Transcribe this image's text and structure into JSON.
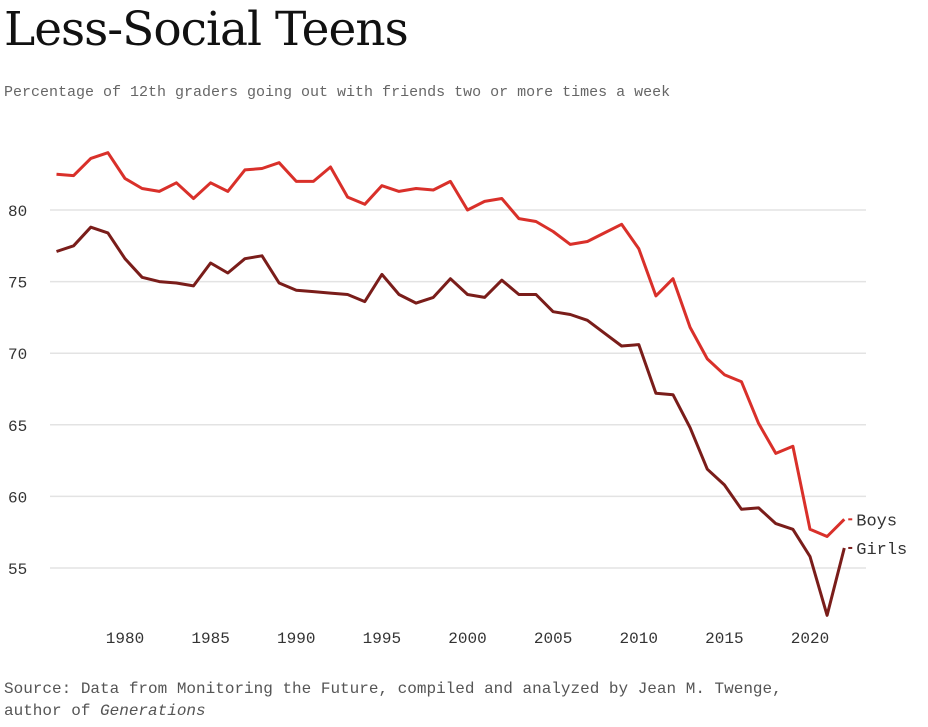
{
  "chart_data": {
    "type": "line",
    "title": "Less-Social Teens",
    "subtitle": "Percentage of 12th graders going out with friends two or more times a week",
    "xlabel": "",
    "ylabel": "",
    "xlim": [
      1976,
      2022
    ],
    "ylim": [
      51,
      85
    ],
    "grid": true,
    "x_ticks": [
      1980,
      1985,
      1990,
      1995,
      2000,
      2005,
      2010,
      2015,
      2020
    ],
    "y_ticks": [
      55,
      60,
      65,
      70,
      75,
      80
    ],
    "x": [
      1976,
      1977,
      1978,
      1979,
      1980,
      1981,
      1982,
      1983,
      1984,
      1985,
      1986,
      1987,
      1988,
      1989,
      1990,
      1991,
      1992,
      1993,
      1994,
      1995,
      1996,
      1997,
      1998,
      1999,
      2000,
      2001,
      2002,
      2003,
      2004,
      2005,
      2006,
      2007,
      2008,
      2009,
      2010,
      2011,
      2012,
      2013,
      2014,
      2015,
      2016,
      2017,
      2018,
      2019,
      2020,
      2021,
      2022
    ],
    "series": [
      {
        "name": "Boys",
        "color": "#d9302a",
        "values": [
          82.5,
          82.4,
          83.6,
          84.0,
          82.2,
          81.5,
          81.3,
          81.9,
          80.8,
          81.9,
          81.3,
          82.8,
          82.9,
          83.3,
          82.0,
          82.0,
          83.0,
          80.9,
          80.4,
          81.7,
          81.3,
          81.5,
          81.4,
          82.0,
          80.0,
          80.6,
          80.8,
          79.4,
          79.2,
          78.5,
          77.6,
          77.8,
          78.4,
          79.0,
          77.3,
          74.0,
          75.2,
          71.8,
          69.6,
          68.5,
          68.0,
          65.1,
          63.0,
          63.5,
          57.7,
          57.2,
          58.4
        ]
      },
      {
        "name": "Girls",
        "color": "#7a1d1a",
        "values": [
          77.1,
          77.5,
          78.8,
          78.4,
          76.6,
          75.3,
          75.0,
          74.9,
          74.7,
          76.3,
          75.6,
          76.6,
          76.8,
          74.9,
          74.4,
          74.3,
          74.2,
          74.1,
          73.6,
          75.5,
          74.1,
          73.5,
          73.9,
          75.2,
          74.1,
          73.9,
          75.1,
          74.1,
          74.1,
          72.9,
          72.7,
          72.3,
          71.4,
          70.5,
          70.6,
          67.2,
          67.1,
          64.8,
          61.9,
          60.8,
          59.1,
          59.2,
          58.1,
          57.7,
          55.8,
          51.7,
          56.4
        ]
      }
    ],
    "legend": "inline-end-labels"
  },
  "source": {
    "text": "Source: Data from Monitoring the Future, compiled and analyzed by Jean M. Twenge,",
    "line2_prefix": "author of ",
    "book": "Generations"
  }
}
